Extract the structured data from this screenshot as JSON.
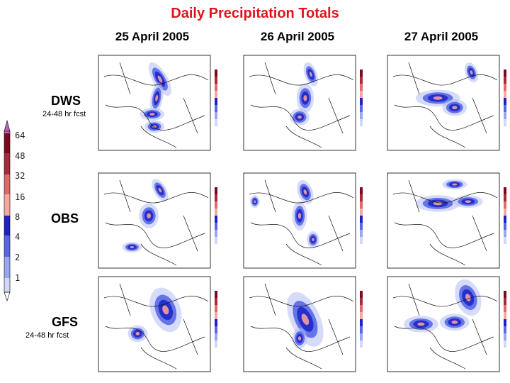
{
  "title": "Daily Precipitation Totals",
  "dates": [
    "25 April 2005",
    "26 April 2005",
    "27 April 2005"
  ],
  "rows": [
    {
      "label": "DWS",
      "sub": "24-48 hr fcst"
    },
    {
      "label": "OBS",
      "sub": ""
    },
    {
      "label": "GFS",
      "sub": "24-48 hr fcst"
    }
  ],
  "colorbar": {
    "labels": [
      "64",
      "48",
      "32",
      "16",
      "8",
      "4",
      "2",
      "1"
    ],
    "colors": [
      "#c060c0",
      "#7a0a1e",
      "#a8283c",
      "#e06a6a",
      "#f4a8a0",
      "#2020c8",
      "#5a66e6",
      "#9aa6f0",
      "#d2d8f8",
      "#ffffff"
    ]
  },
  "palette": {
    "title": "#e0141e",
    "deep": "#1e28c8",
    "mid": "#5a68e8",
    "light": "#b4bef4",
    "pink": "#f4a0a0"
  }
}
